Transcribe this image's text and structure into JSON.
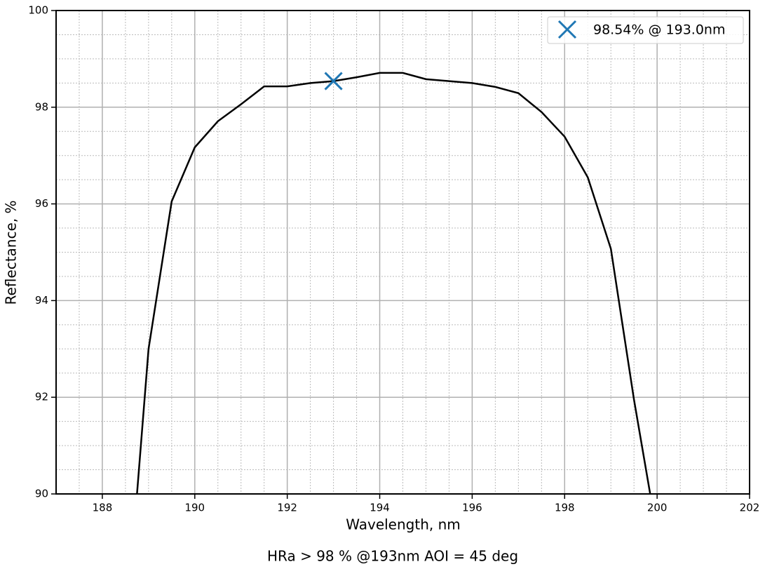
{
  "chart_data": {
    "type": "line",
    "subtitle": "HRa > 98 % @193nm AOI = 45 deg",
    "x_label": "Wavelength, nm",
    "y_label": "Reflectance, %",
    "xlim": [
      187,
      202
    ],
    "ylim": [
      90,
      100
    ],
    "xticks": [
      188,
      190,
      192,
      194,
      196,
      198,
      200,
      202
    ],
    "yticks": [
      90,
      92,
      94,
      96,
      98,
      100
    ],
    "x_minor_ticks": [
      187.5,
      188.5,
      189,
      189.5,
      190.5,
      191,
      191.5,
      192.5,
      193,
      193.5,
      194.5,
      195,
      195.5,
      196.5,
      197,
      197.5,
      198.5,
      199,
      199.5,
      200.5,
      201,
      201.5
    ],
    "y_minor_ticks": [
      90.5,
      91,
      91.5,
      92.5,
      93,
      93.5,
      94.5,
      95,
      95.5,
      96.5,
      97,
      97.5,
      98.5,
      99,
      99.5
    ],
    "grid": true,
    "series": [
      {
        "color": "#000000",
        "x": [
          188.75,
          189,
          189.5,
          190,
          190.5,
          191,
          191.5,
          192,
          192.5,
          193,
          193.5,
          194,
          194.5,
          195,
          195.5,
          196,
          196.5,
          197,
          197.5,
          198,
          198.5,
          199,
          199.5,
          199.85
        ],
        "values": [
          90,
          93.0,
          96.05,
          97.17,
          97.71,
          98.06,
          98.43,
          98.43,
          98.5,
          98.54,
          98.62,
          98.71,
          98.71,
          98.58,
          98.54,
          98.5,
          98.42,
          98.29,
          97.9,
          97.39,
          96.55,
          95.07,
          91.95,
          90
        ]
      }
    ],
    "marker": {
      "name": "98.54% @ 193.0nm",
      "x": 193.0,
      "y": 98.54,
      "color": "#1f77b4"
    },
    "legend": "upper right"
  }
}
